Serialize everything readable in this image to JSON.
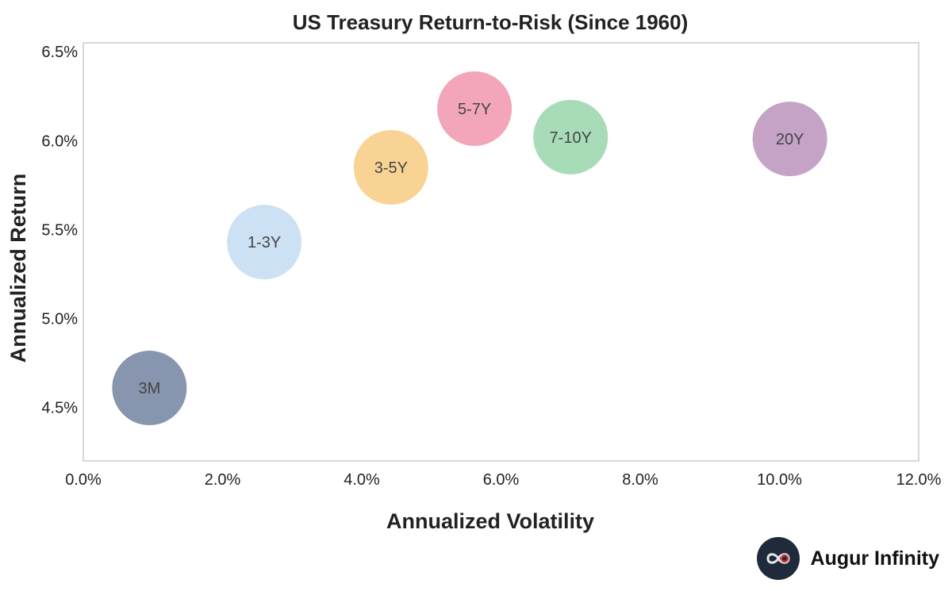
{
  "chart_data": {
    "type": "scatter",
    "title": "US Treasury Return-to-Risk (Since 1960)",
    "xlabel": "Annualized Volatility",
    "ylabel": "Annualized Return",
    "xlim": [
      0,
      12
    ],
    "ylim": [
      4.2,
      6.55
    ],
    "x_ticks": [
      "0.0%",
      "2.0%",
      "4.0%",
      "6.0%",
      "8.0%",
      "10.0%",
      "12.0%"
    ],
    "y_ticks": [
      "4.5%",
      "5.0%",
      "5.5%",
      "6.0%",
      "6.5%"
    ],
    "grid": false,
    "points": [
      {
        "label": "3M",
        "x": 0.95,
        "y": 4.61,
        "color": "#8796ae"
      },
      {
        "label": "1-3Y",
        "x": 2.6,
        "y": 5.43,
        "color": "#cde1f4"
      },
      {
        "label": "3-5Y",
        "x": 4.42,
        "y": 5.85,
        "color": "#f8d394"
      },
      {
        "label": "5-7Y",
        "x": 5.62,
        "y": 6.18,
        "color": "#f3a6b9"
      },
      {
        "label": "7-10Y",
        "x": 7.0,
        "y": 6.02,
        "color": "#a8dbb8"
      },
      {
        "label": "20Y",
        "x": 10.15,
        "y": 6.01,
        "color": "#c4a3c7"
      }
    ]
  },
  "brand": {
    "name": "Augur Infinity",
    "icon": "infinity-icon"
  }
}
